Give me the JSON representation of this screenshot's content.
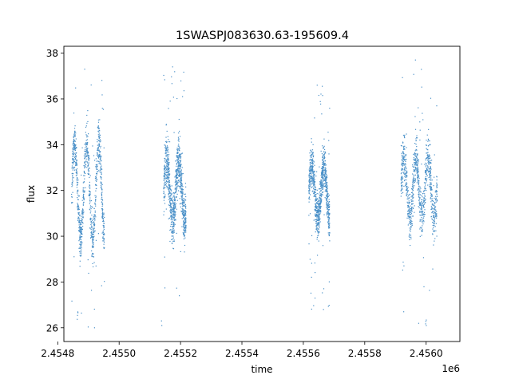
{
  "chart_data": {
    "type": "scatter",
    "title": "1SWASPJ083630.63-195609.4",
    "xlabel": "time",
    "ylabel": "flux",
    "x_offset_label": "1e6",
    "xlim": [
      2.45482,
      2.45611
    ],
    "ylim": [
      25.4,
      38.3
    ],
    "x_ticks": [
      2.4548,
      2.455,
      2.4552,
      2.4554,
      2.4556,
      2.4558,
      2.456
    ],
    "x_tick_labels": [
      "2.4548",
      "2.4550",
      "2.4552",
      "2.4554",
      "2.4556",
      "2.4558",
      "2.4560"
    ],
    "y_ticks": [
      26,
      28,
      30,
      32,
      34,
      36,
      38
    ],
    "y_tick_labels": [
      "26",
      "28",
      "30",
      "32",
      "34",
      "36",
      "38"
    ],
    "grid": false,
    "marker_color": "#4a90c8",
    "series": [
      {
        "segments": [
          {
            "x": [
              2.454845,
              2.454952
            ],
            "center": 31.9,
            "amplitude": 2.1,
            "spread": 0.9,
            "outlier_min": 26.0,
            "outlier_max": 37.3
          },
          {
            "x": [
              2.455145,
              2.455218
            ],
            "center": 32.0,
            "amplitude": 1.3,
            "spread": 1.0,
            "outlier_min": 27.4,
            "outlier_max": 37.4
          },
          {
            "x": [
              2.455618,
              2.455686
            ],
            "center": 31.9,
            "amplitude": 1.2,
            "spread": 0.8,
            "outlier_min": 26.8,
            "outlier_max": 36.6
          },
          {
            "x": [
              2.455918,
              2.456036
            ],
            "center": 32.1,
            "amplitude": 1.3,
            "spread": 0.9,
            "outlier_min": 26.1,
            "outlier_max": 37.7
          }
        ],
        "isolated_points": [
          {
            "x": 2.455138,
            "y": 26.3
          },
          {
            "x": 2.455139,
            "y": 26.1
          }
        ]
      }
    ]
  }
}
